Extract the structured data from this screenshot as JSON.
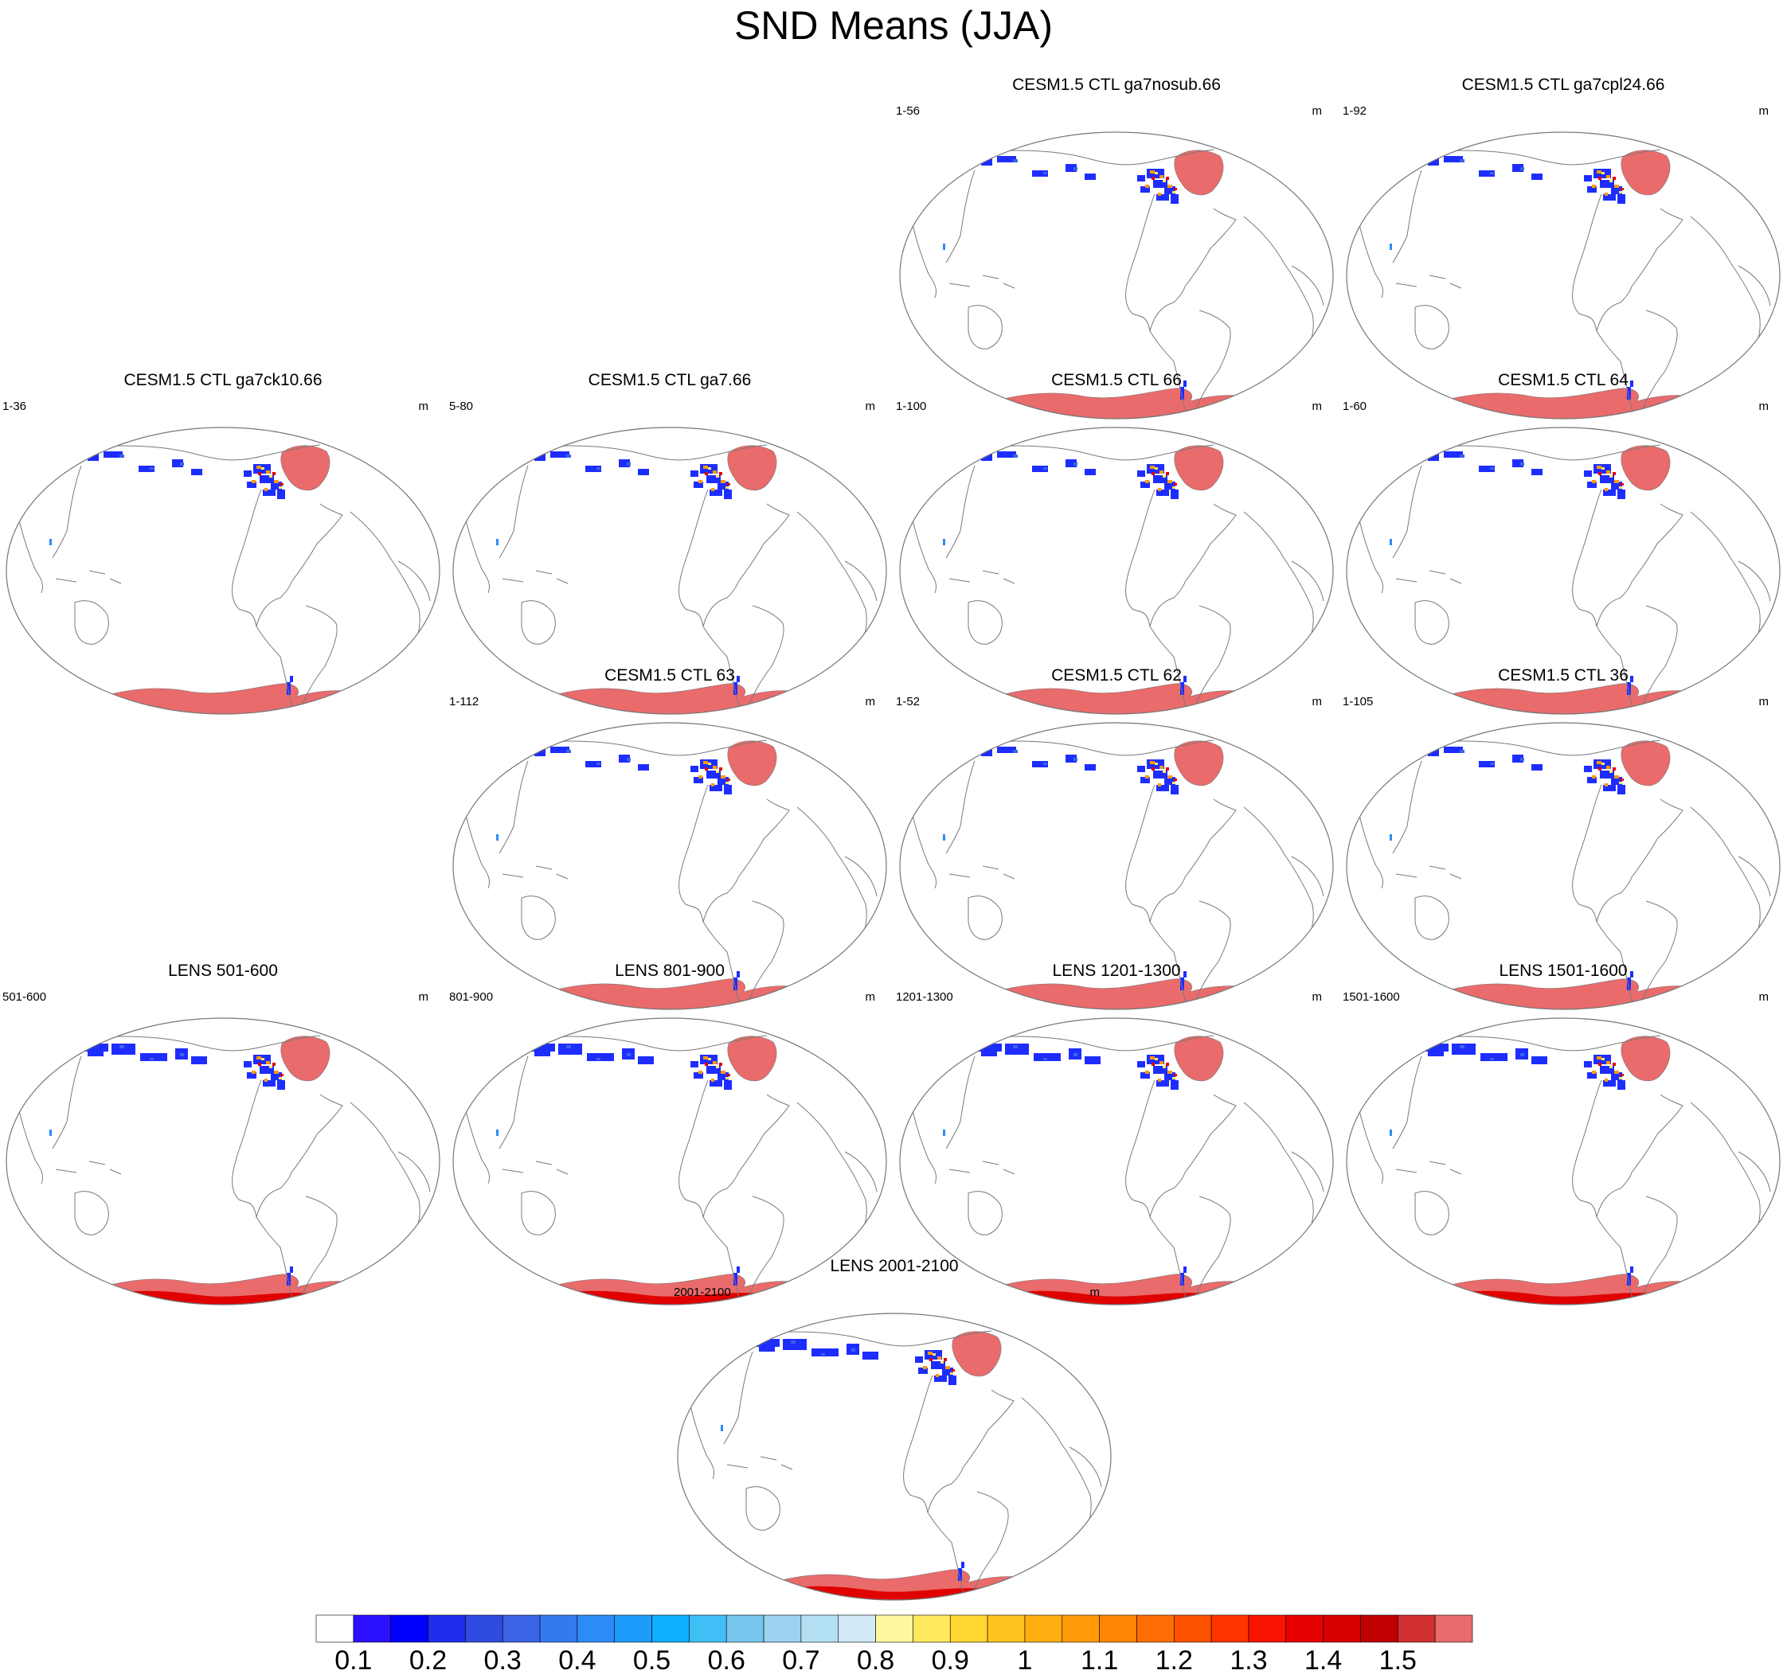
{
  "figure": {
    "title": "SND Means (JJA)",
    "colors": {
      "antarctica": "#E96B6B",
      "antarctica_deep": "#E00000",
      "greenland": "#E96B6B",
      "snow_patch": "#1E2DFF",
      "coast": "#7a7a7a",
      "border": "#777777"
    }
  },
  "chart_data": {
    "type": "heatmap",
    "title": "SND Means (JJA)",
    "variable": "SND",
    "season": "JJA",
    "units": "m",
    "projection": "Winkel Tripel (Pacific-centered)",
    "panels": [
      {
        "id": "ga7nosub66",
        "title": "CESM1.5 CTL ga7nosub.66",
        "range": "1-56",
        "units": "m",
        "style": "ctl"
      },
      {
        "id": "ga7cpl2466",
        "title": "CESM1.5 CTL ga7cpl24.66",
        "range": "1-92",
        "units": "m",
        "style": "ctl"
      },
      {
        "id": "ga7ck1066",
        "title": "CESM1.5 CTL ga7ck10.66",
        "range": "1-36",
        "units": "m",
        "style": "ctl"
      },
      {
        "id": "ga766",
        "title": "CESM1.5 CTL ga7.66",
        "range": "5-80",
        "units": "m",
        "style": "ctl"
      },
      {
        "id": "ctl66",
        "title": "CESM1.5 CTL 66",
        "range": "1-100",
        "units": "m",
        "style": "ctl"
      },
      {
        "id": "ctl64",
        "title": "CESM1.5 CTL 64",
        "range": "1-60",
        "units": "m",
        "style": "ctl"
      },
      {
        "id": "ctl63",
        "title": "CESM1.5 CTL 63",
        "range": "1-112",
        "units": "m",
        "style": "ctl"
      },
      {
        "id": "ctl62",
        "title": "CESM1.5 CTL 62",
        "range": "1-52",
        "units": "m",
        "style": "ctl"
      },
      {
        "id": "ctl36",
        "title": "CESM1.5 CTL 36",
        "range": "1-105",
        "units": "m",
        "style": "ctl"
      },
      {
        "id": "lens501",
        "title": "LENS 501-600",
        "range": "501-600",
        "units": "m",
        "style": "lens"
      },
      {
        "id": "lens801",
        "title": "LENS 801-900",
        "range": "801-900",
        "units": "m",
        "style": "lens"
      },
      {
        "id": "lens1201",
        "title": "LENS 1201-1300",
        "range": "1201-1300",
        "units": "m",
        "style": "lens"
      },
      {
        "id": "lens1501",
        "title": "LENS 1501-1600",
        "range": "1501-1600",
        "units": "m",
        "style": "lens"
      },
      {
        "id": "lens2001",
        "title": "LENS 2001-2100",
        "range": "2001-2100",
        "units": "m",
        "style": "lens"
      }
    ],
    "colorbar": {
      "labels": [
        "0.1",
        "0.2",
        "0.3",
        "0.4",
        "0.5",
        "0.6",
        "0.7",
        "0.8",
        "0.9",
        "1",
        "1.1",
        "1.2",
        "1.3",
        "1.4",
        "1.5"
      ],
      "levels": [
        0.1,
        0.2,
        0.3,
        0.4,
        0.5,
        0.6,
        0.7,
        0.8,
        0.9,
        1.0,
        1.1,
        1.2,
        1.3,
        1.4,
        1.5
      ],
      "colors": [
        "#FFFFFF",
        "#2B0FFF",
        "#0000FF",
        "#1E2DEB",
        "#2F4BE0",
        "#3A63E6",
        "#3579EF",
        "#2D8BF7",
        "#1E9CFB",
        "#0DB0FF",
        "#40BEF6",
        "#78C5EE",
        "#9DD2F0",
        "#B4E0F4",
        "#D2EAF7",
        "#FFF7A0",
        "#FFE95E",
        "#FFD632",
        "#FFC31E",
        "#FFAF12",
        "#FF9A0A",
        "#FF8505",
        "#FF6E05",
        "#FF5200",
        "#FF3400",
        "#F81400",
        "#E60000",
        "#D80000",
        "#C00000",
        "#D03030",
        "#E96B6B"
      ]
    }
  }
}
